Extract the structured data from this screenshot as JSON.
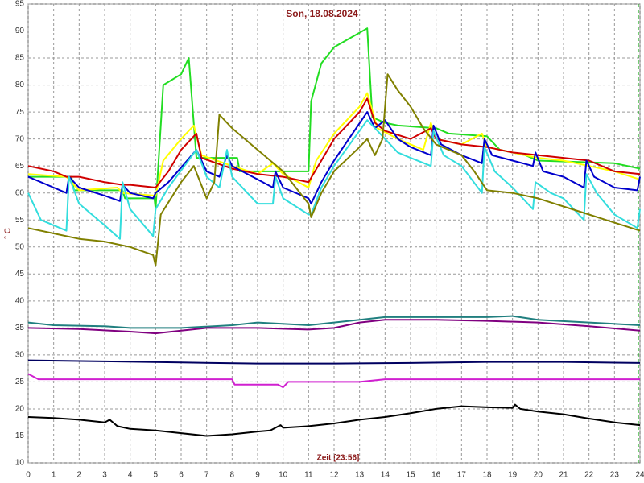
{
  "chart_data": {
    "type": "line",
    "title": "Son, 18.08.2024",
    "xlabel": "Zeit [23:56]",
    "ylabel": "° C",
    "xlim": [
      0,
      24
    ],
    "ylim": [
      10,
      95
    ],
    "xticks": [
      0,
      1,
      2,
      3,
      4,
      5,
      6,
      7,
      8,
      9,
      10,
      11,
      12,
      13,
      14,
      15,
      16,
      17,
      18,
      19,
      20,
      21,
      22,
      23,
      24
    ],
    "yticks": [
      10,
      15,
      20,
      25,
      30,
      35,
      40,
      45,
      50,
      55,
      60,
      65,
      70,
      75,
      80,
      85,
      90,
      95
    ],
    "grid": true,
    "marker_x": 23.93,
    "marker_color": "#00a000",
    "series": [
      {
        "color": "#22dd22",
        "x": [
          0,
          1.7,
          1.8,
          3.7,
          3.8,
          4.95,
          5,
          5.3,
          6,
          6.3,
          6.6,
          7,
          8.2,
          8.3,
          11,
          11.1,
          11.5,
          12,
          13.3,
          13.5,
          14,
          14.5,
          16,
          16.5,
          18,
          18.5,
          19.5,
          20,
          23,
          24
        ],
        "values": [
          63,
          63,
          60.5,
          60.5,
          59,
          59,
          57,
          80,
          82,
          85,
          66.5,
          66.5,
          66.5,
          64,
          64,
          77,
          84,
          87,
          90.5,
          74,
          73,
          72.5,
          72,
          71,
          70.5,
          68,
          67,
          66,
          65.5,
          64.5
        ]
      },
      {
        "color": "#ffff00",
        "x": [
          0,
          1.5,
          2,
          3.5,
          3.7,
          5,
          5.3,
          6,
          6.5,
          6.8,
          8,
          9,
          9.6,
          10,
          11,
          11.3,
          12,
          13,
          13.3,
          13.7,
          14.5,
          15.5,
          15.8,
          16,
          17,
          17.8,
          18,
          19,
          20,
          21,
          22,
          23,
          24
        ],
        "values": [
          63.5,
          63,
          60.5,
          61,
          60,
          59.5,
          66,
          70,
          72.5,
          67,
          65,
          63.5,
          65.5,
          63.5,
          61,
          66,
          71,
          76,
          78.5,
          72,
          70,
          68,
          73,
          70,
          69,
          71,
          68.5,
          67.5,
          66.5,
          66,
          65,
          64,
          62.5
        ]
      },
      {
        "color": "#d00000",
        "x": [
          0,
          1,
          1.5,
          2,
          3,
          3.7,
          4,
          5,
          5.5,
          6,
          6.6,
          6.8,
          8,
          9,
          10,
          11,
          11.5,
          12,
          13,
          13.3,
          13.6,
          14,
          15,
          15.8,
          16,
          17,
          18,
          19,
          20,
          21,
          22,
          23,
          24
        ],
        "values": [
          65,
          64,
          63,
          63,
          62,
          61.5,
          61.5,
          61,
          64,
          68,
          71,
          66.5,
          64.5,
          63.5,
          63,
          62,
          66,
          70,
          75,
          77.5,
          73,
          71.5,
          70,
          72,
          70,
          69,
          68.5,
          67.5,
          67,
          66.5,
          66,
          64,
          63.5
        ]
      },
      {
        "color": "#0000cc",
        "x": [
          0,
          1,
          1.5,
          1.6,
          2,
          3,
          3.6,
          3.7,
          4,
          4.9,
          5,
          5.5,
          6.6,
          7,
          7.5,
          7.8,
          8,
          9,
          9.6,
          9.7,
          10,
          11,
          11.1,
          11.5,
          12,
          13.3,
          13.6,
          14,
          14.5,
          15,
          15.8,
          15.9,
          16.2,
          17,
          17.8,
          17.9,
          18.2,
          19,
          19.8,
          19.9,
          20.2,
          21,
          21.8,
          21.9,
          22.2,
          23,
          23.9,
          24
        ],
        "values": [
          63,
          61,
          60,
          63,
          61,
          59.5,
          58.5,
          61.5,
          60,
          59,
          60,
          62,
          68,
          64,
          63,
          67,
          65,
          62.5,
          61,
          64,
          61,
          59,
          58,
          62,
          66,
          75,
          72,
          73.5,
          70,
          68.5,
          67,
          72.5,
          69,
          67,
          65.5,
          70,
          67,
          66,
          65,
          67.5,
          64,
          63,
          61,
          66,
          63,
          61,
          60.5,
          63
        ]
      },
      {
        "color": "#33dddd",
        "x": [
          0,
          0.5,
          1.5,
          1.6,
          2,
          3,
          3.6,
          3.7,
          4,
          4.9,
          5,
          5.5,
          6.6,
          7,
          7.5,
          7.8,
          8,
          9,
          9.6,
          9.7,
          10,
          11,
          11.1,
          11.5,
          12,
          13.3,
          13.6,
          14,
          14.5,
          15,
          15.8,
          15.9,
          16.3,
          17,
          17.8,
          17.9,
          18.3,
          19,
          19.8,
          19.9,
          20.5,
          21,
          21.8,
          21.9,
          22.3,
          23,
          23.9,
          24
        ],
        "values": [
          60,
          55,
          53,
          63,
          58,
          54,
          51.5,
          62,
          57,
          52,
          57,
          61,
          68,
          63,
          61,
          68,
          63,
          58,
          58,
          63,
          59,
          56,
          56,
          61,
          65,
          73.5,
          72,
          70,
          67.5,
          66.5,
          65,
          71.5,
          67,
          65,
          60,
          68.5,
          64,
          61,
          57,
          62,
          60,
          59,
          55,
          63.5,
          60,
          56,
          53.5,
          57
        ]
      },
      {
        "color": "#808000",
        "x": [
          0,
          1,
          2,
          3,
          4,
          4.9,
          5,
          5.2,
          6,
          6.5,
          7,
          7.3,
          7.5,
          8,
          9,
          10,
          11,
          11.1,
          11.5,
          12,
          13,
          13.3,
          13.6,
          13.9,
          14.1,
          14.5,
          15,
          15.5,
          16,
          17,
          17.5,
          18,
          19,
          20,
          21,
          22,
          23,
          24
        ],
        "values": [
          53.5,
          52.5,
          51.5,
          51,
          50,
          48.5,
          46.5,
          56,
          62,
          65,
          59,
          62,
          74.5,
          72,
          68,
          64,
          58,
          55.5,
          60,
          64,
          68.5,
          70,
          67,
          70,
          82,
          79,
          76,
          72,
          69,
          67,
          64,
          60.5,
          60,
          59,
          57.5,
          56,
          54.5,
          53
        ]
      },
      {
        "color": "#207f7f",
        "x": [
          0,
          1,
          3,
          4,
          6,
          8,
          9,
          11,
          12,
          13,
          14,
          16,
          17,
          18,
          19,
          20,
          22,
          24
        ],
        "values": [
          36,
          35.5,
          35.3,
          35,
          35,
          35.5,
          36,
          35.5,
          36,
          36.5,
          37,
          37,
          37,
          37,
          37.2,
          36.5,
          36,
          35.5
        ]
      },
      {
        "color": "#800080",
        "x": [
          0,
          2,
          4,
          5,
          6,
          7,
          9,
          11,
          12,
          13,
          14,
          16,
          18,
          20,
          22,
          24
        ],
        "values": [
          35,
          34.8,
          34.3,
          34,
          34.5,
          35,
          35,
          34.7,
          35,
          36,
          36.5,
          36.5,
          36.3,
          36,
          35.3,
          34.5
        ]
      },
      {
        "color": "#000060",
        "x": [
          0,
          3,
          6,
          9,
          12,
          15,
          18,
          21,
          24
        ],
        "values": [
          29,
          28.8,
          28.6,
          28.4,
          28.4,
          28.5,
          28.7,
          28.7,
          28.5
        ]
      },
      {
        "color": "#d020d0",
        "x": [
          0,
          0.4,
          8,
          8.1,
          9.8,
          10,
          10.2,
          13,
          14,
          24
        ],
        "values": [
          26.5,
          25.5,
          25.5,
          24.5,
          24.5,
          24,
          25,
          25,
          25.5,
          25.5
        ]
      },
      {
        "color": "#000000",
        "x": [
          0,
          1,
          2,
          3,
          3.2,
          3.5,
          4,
          5,
          6,
          7,
          8,
          9,
          9.5,
          9.9,
          10,
          11,
          12,
          13,
          14,
          15,
          16,
          17,
          18,
          19,
          19.1,
          19.3,
          20,
          21,
          22,
          23,
          24
        ],
        "values": [
          18.5,
          18.3,
          18,
          17.5,
          18,
          16.8,
          16.3,
          16,
          15.5,
          15,
          15.3,
          15.8,
          16,
          17,
          16.5,
          16.8,
          17.3,
          18,
          18.5,
          19.2,
          20,
          20.5,
          20.3,
          20.2,
          20.8,
          20,
          19.5,
          19,
          18.2,
          17.5,
          17
        ]
      }
    ]
  }
}
